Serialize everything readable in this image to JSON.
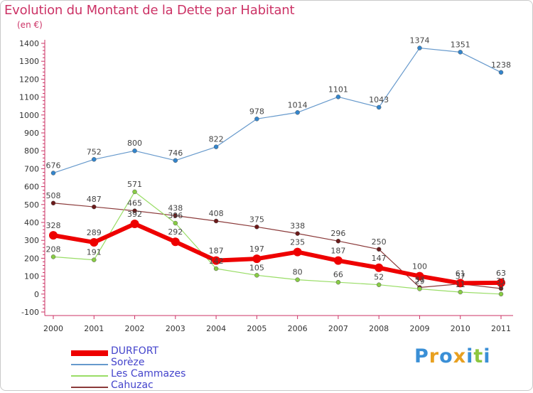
{
  "title": "Evolution du Montant de la Dette par Habitant",
  "subtitle": "(en €)",
  "logo": {
    "text": "Proxiti",
    "letters": [
      {
        "ch": "P",
        "color": "#3a8fd6"
      },
      {
        "ch": "r",
        "color": "#e8a020"
      },
      {
        "ch": "o",
        "color": "#3a8fd6"
      },
      {
        "ch": "x",
        "color": "#e8a020"
      },
      {
        "ch": "i",
        "color": "#3a8fd6"
      },
      {
        "ch": "t",
        "color": "#8cc63f"
      },
      {
        "ch": "i",
        "color": "#3a8fd6"
      }
    ]
  },
  "chart_data": {
    "type": "line",
    "x": [
      "2000",
      "2001",
      "2002",
      "2003",
      "2004",
      "2005",
      "2006",
      "2007",
      "2008",
      "2009",
      "2010",
      "2011"
    ],
    "ylim": [
      -100,
      1400
    ],
    "yticks": [
      -100,
      0,
      100,
      200,
      300,
      400,
      500,
      600,
      700,
      800,
      900,
      1000,
      1100,
      1200,
      1300,
      1400
    ],
    "grid": false,
    "legend_position": "bottom-left",
    "series": [
      {
        "name": "Sorèze",
        "color": "#6699cc",
        "marker": "#3385cc",
        "width": 1.2,
        "r": 3,
        "values": [
          676,
          752,
          800,
          746,
          822,
          978,
          1014,
          1101,
          1043,
          1374,
          1351,
          1238
        ],
        "labels": [
          "676",
          "752",
          "800",
          "746",
          "822",
          "978",
          "1014",
          "1101",
          "1043",
          "1374",
          "1351",
          "1238"
        ]
      },
      {
        "name": "Cahuzac",
        "color": "#8b3a3a",
        "marker": "#6b1a1a",
        "width": 1.2,
        "r": 3,
        "values": [
          508,
          487,
          465,
          438,
          408,
          375,
          338,
          296,
          250,
          37,
          57,
          31
        ],
        "labels": [
          "508",
          "487",
          "465",
          "438",
          "408",
          "375",
          "338",
          "296",
          "250",
          "37",
          "57",
          "31"
        ]
      },
      {
        "name": "Les Cammazes",
        "color": "#99dd66",
        "marker": "#88cc44",
        "width": 1.2,
        "r": 3,
        "values": [
          208,
          191,
          571,
          396,
          142,
          105,
          80,
          66,
          52,
          29,
          11,
          0
        ],
        "labels": [
          "208",
          "191",
          "571",
          "396",
          "142",
          "105",
          "80",
          "66",
          "52",
          "29",
          "11",
          "0"
        ]
      },
      {
        "name": "DURFORT",
        "color": "#ee0000",
        "marker": "#ee0000",
        "width": 6,
        "r": 6,
        "values": [
          328,
          289,
          392,
          292,
          187,
          197,
          235,
          187,
          147,
          100,
          61,
          63
        ],
        "labels": [
          "328",
          "289",
          "392",
          "292",
          "187",
          "197",
          "235",
          "187",
          "147",
          "100",
          "61",
          "63"
        ]
      }
    ],
    "legend": [
      {
        "name": "DURFORT",
        "color": "#ee0000",
        "thickness": 8
      },
      {
        "name": "Sorèze",
        "color": "#6699cc",
        "thickness": 2
      },
      {
        "name": "Les Cammazes",
        "color": "#99dd66",
        "thickness": 2
      },
      {
        "name": "Cahuzac",
        "color": "#8b3a3a",
        "thickness": 2
      }
    ]
  }
}
